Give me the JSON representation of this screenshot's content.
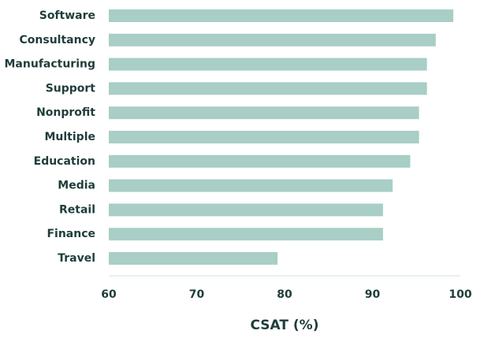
{
  "chart_data": {
    "type": "bar",
    "orientation": "horizontal",
    "categories": [
      "Software",
      "Consultancy",
      "Manufacturing",
      "Support",
      "Nonprofit",
      "Multiple",
      "Education",
      "Media",
      "Retail",
      "Finance",
      "Travel"
    ],
    "values": [
      99.2,
      97.2,
      96.2,
      96.2,
      95.3,
      95.3,
      94.3,
      92.3,
      91.2,
      91.2,
      79.2
    ],
    "xlabel": "CSAT (%)",
    "ylabel": "",
    "xlim": [
      60,
      100
    ],
    "xticks": [
      60,
      70,
      80,
      90,
      100
    ],
    "grid": false,
    "bar_color": "#a8cec6",
    "axis_color": "#e1ebe8",
    "text_color": "#1f3d3a"
  }
}
